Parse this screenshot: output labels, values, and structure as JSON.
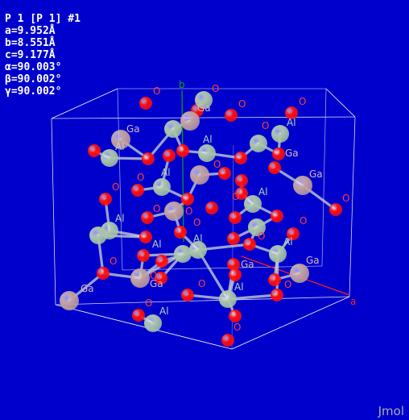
{
  "app": {
    "brand": "Jmol"
  },
  "colors": {
    "background": "#0000cc",
    "oxygen": "#ff0d0d",
    "aluminium": "#a8c4a8",
    "gallium": "#c2a0a0",
    "bond": "#cfd8cf",
    "cell": "#ffffff",
    "axis_a": "#ff2020",
    "axis_b": "#10a010"
  },
  "info": {
    "lines": [
      "P 1 [P 1] #1",
      "a=9.952Å",
      "b=8.551Å",
      "c=9.177Å",
      "α=90.003°",
      "β=90.002°",
      "γ=90.002°"
    ]
  },
  "axes": {
    "a": "a",
    "b": "b"
  },
  "atom_labels": {
    "oxygen": "O",
    "aluminium": "Al",
    "gallium": "Ga"
  }
}
